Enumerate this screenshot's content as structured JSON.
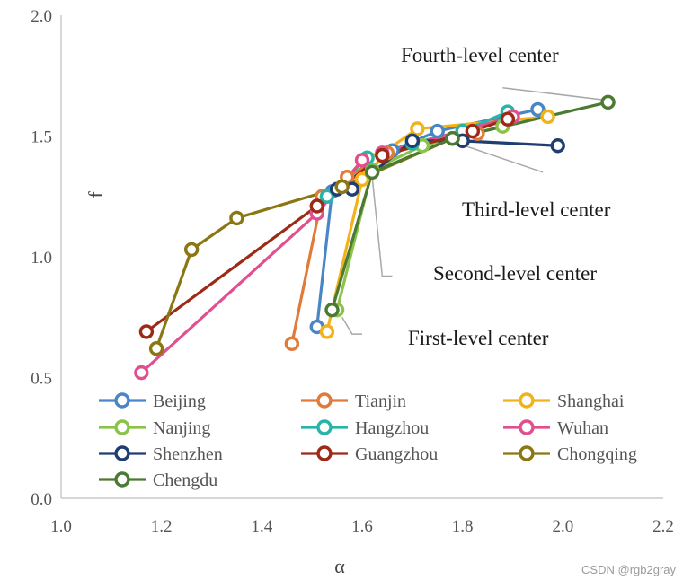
{
  "chart_data": {
    "type": "line",
    "title": "",
    "xlabel": "α",
    "ylabel": "f",
    "xlim": [
      1.0,
      2.2
    ],
    "ylim": [
      0.0,
      2.0
    ],
    "xticks": [
      "1.0",
      "1.2",
      "1.4",
      "1.6",
      "1.8",
      "2.0",
      "2.2"
    ],
    "yticks": [
      "0.0",
      "0.5",
      "1.0",
      "1.5",
      "2.0"
    ],
    "grid": false,
    "legend_position": "bottom-left",
    "series": [
      {
        "name": "Beijing",
        "color": "#4a86c5",
        "x": [
          1.51,
          1.54,
          1.66,
          1.75,
          1.95
        ],
        "y": [
          0.71,
          1.27,
          1.44,
          1.52,
          1.61
        ]
      },
      {
        "name": "Tianjin",
        "color": "#e07b39",
        "x": [
          1.46,
          1.52,
          1.57,
          1.65,
          1.83
        ],
        "y": [
          0.64,
          1.25,
          1.33,
          1.43,
          1.51
        ]
      },
      {
        "name": "Shanghai",
        "color": "#f2b21a",
        "x": [
          1.53,
          1.6,
          1.62,
          1.71,
          1.97
        ],
        "y": [
          0.69,
          1.32,
          1.4,
          1.53,
          1.58
        ]
      },
      {
        "name": "Nanjing",
        "color": "#8bc34a",
        "x": [
          1.55,
          1.62,
          1.72,
          1.8,
          1.88
        ],
        "y": [
          0.78,
          1.36,
          1.46,
          1.5,
          1.54
        ]
      },
      {
        "name": "Hangzhou",
        "color": "#26b5a6",
        "x": [
          1.53,
          1.61,
          1.7,
          1.8,
          1.89
        ],
        "y": [
          1.25,
          1.41,
          1.47,
          1.52,
          1.6
        ]
      },
      {
        "name": "Wuhan",
        "color": "#e0508f",
        "x": [
          1.16,
          1.51,
          1.6,
          1.64,
          1.9
        ],
        "y": [
          0.52,
          1.18,
          1.4,
          1.43,
          1.58
        ]
      },
      {
        "name": "Shenzhen",
        "color": "#1f3f73",
        "x": [
          1.55,
          1.58,
          1.7,
          1.8,
          1.99
        ],
        "y": [
          1.28,
          1.28,
          1.48,
          1.48,
          1.46
        ]
      },
      {
        "name": "Guangzhou",
        "color": "#9c2a16",
        "x": [
          1.17,
          1.51,
          1.64,
          1.82,
          1.89
        ],
        "y": [
          0.69,
          1.21,
          1.42,
          1.52,
          1.57
        ]
      },
      {
        "name": "Chongqing",
        "color": "#8a7612",
        "x": [
          1.19,
          1.26,
          1.35,
          1.56,
          1.78
        ],
        "y": [
          0.62,
          1.03,
          1.16,
          1.29,
          1.49
        ]
      },
      {
        "name": "Chengdu",
        "color": "#4b7a32",
        "x": [
          1.54,
          1.62,
          1.78,
          2.09
        ],
        "y": [
          0.78,
          1.35,
          1.49,
          1.64
        ]
      }
    ],
    "annotations": [
      {
        "text": "Fourth-level center",
        "leader": [
          [
            1.88,
            1.7
          ],
          [
            2.08,
            1.65
          ]
        ]
      },
      {
        "text": "Third-level center",
        "leader": [
          [
            1.96,
            1.35
          ],
          [
            1.79,
            1.47
          ]
        ]
      },
      {
        "text": "Second-level center",
        "leader": [
          [
            1.66,
            0.92
          ],
          [
            1.64,
            0.92
          ],
          [
            1.62,
            1.33
          ]
        ]
      },
      {
        "text": "First-level center",
        "leader": [
          [
            1.6,
            0.68
          ],
          [
            1.58,
            0.68
          ],
          [
            1.56,
            0.75
          ]
        ]
      }
    ]
  },
  "watermark": "CSDN @rgb2gray"
}
